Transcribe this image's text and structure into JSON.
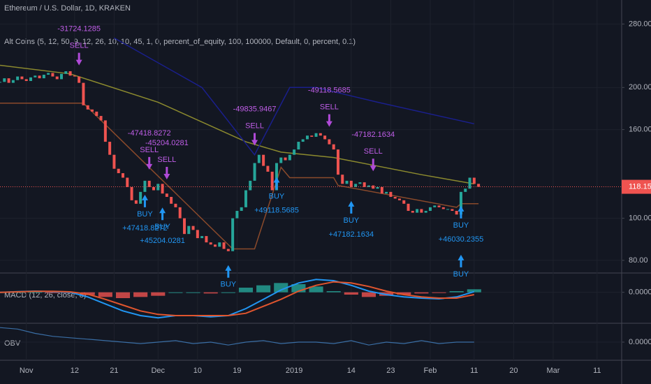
{
  "chart_data": {
    "type": "candlestick",
    "title": "Ethereum / U.S. Dollar, 1D, KRAKEN",
    "subtitle": "Alt Coins (5, 12, 50, 9, 12, 26, 10, 10, 45, 1, 0, percent_of_equity, 100, 100000, Default, 0, percent, 0.1)",
    "log_scale": true,
    "grid": true,
    "xlim": [
      -6,
      135.6
    ],
    "xticks": [
      {
        "value": 0,
        "label": "Nov"
      },
      {
        "value": 11,
        "label": "12"
      },
      {
        "value": 20,
        "label": "21"
      },
      {
        "value": 30,
        "label": "Dec"
      },
      {
        "value": 39,
        "label": "10"
      },
      {
        "value": 48,
        "label": "19"
      },
      {
        "value": 61,
        "label": "2019"
      },
      {
        "value": 74,
        "label": "14"
      },
      {
        "value": 83,
        "label": "23"
      },
      {
        "value": 92,
        "label": "Feb"
      },
      {
        "value": 102,
        "label": "11"
      },
      {
        "value": 111,
        "label": "20"
      },
      {
        "value": 120,
        "label": "Mar"
      },
      {
        "value": 130,
        "label": "11"
      }
    ],
    "ylim": [
      75.1,
      318
    ],
    "yticks": [
      {
        "value": 80,
        "label": "80.00"
      },
      {
        "value": 100,
        "label": "100.00"
      },
      {
        "value": 160,
        "label": "160.00"
      },
      {
        "value": 200,
        "label": "200.00"
      },
      {
        "value": 280,
        "label": "280.00"
      }
    ],
    "last_price": 118.15,
    "up_color": "#26a69a",
    "down_color": "#ef5350",
    "x": [
      -6,
      -5,
      -4,
      -3,
      -2,
      -1,
      0,
      1,
      2,
      3,
      4,
      5,
      6,
      7,
      8,
      9,
      10,
      11,
      12,
      13,
      14,
      15,
      16,
      17,
      18,
      19,
      20,
      21,
      22,
      23,
      24,
      25,
      26,
      27,
      28,
      29,
      30,
      31,
      32,
      33,
      34,
      35,
      36,
      37,
      38,
      39,
      40,
      41,
      42,
      43,
      44,
      45,
      46,
      47,
      48,
      49,
      50,
      51,
      52,
      53,
      54,
      55,
      56,
      57,
      58,
      59,
      60,
      61,
      62,
      63,
      64,
      65,
      66,
      67,
      68,
      69,
      70,
      71,
      72,
      73,
      74,
      75,
      76,
      77,
      78,
      79,
      80,
      81,
      82,
      83,
      84,
      85,
      86,
      87,
      88,
      89,
      90,
      91,
      92,
      93,
      94,
      95,
      96,
      97,
      98,
      99,
      100,
      101,
      102,
      103
    ],
    "close": [
      206,
      210,
      205,
      208,
      212,
      209,
      207,
      211,
      213,
      210,
      214,
      216,
      212,
      209,
      215,
      218,
      213,
      212,
      205,
      182,
      178,
      176,
      172,
      168,
      150,
      140,
      130,
      127,
      124,
      118,
      110,
      108,
      115,
      122,
      118,
      116,
      120,
      114,
      112,
      108,
      106,
      100,
      92,
      96,
      94,
      90,
      91,
      88,
      87,
      86,
      88,
      85,
      84,
      100,
      104,
      106,
      116,
      122,
      134,
      140,
      132,
      128,
      116,
      134,
      138,
      136,
      140,
      144,
      150,
      152,
      155,
      154,
      157,
      155,
      152,
      148,
      144,
      126,
      120,
      122,
      118,
      120,
      121,
      118,
      119,
      117,
      118,
      114,
      115,
      112,
      111,
      110,
      108,
      104,
      103,
      105,
      103,
      104,
      106,
      107,
      106,
      105,
      105,
      104,
      102,
      115,
      117,
      124,
      120,
      118.15
    ],
    "lines": [
      {
        "color": "#8c8a2e",
        "x": [
          -6,
          10,
          30,
          50,
          58,
          70,
          90,
          102
        ],
        "values": [
          225,
          215,
          185,
          150,
          142,
          138,
          126,
          120
        ]
      },
      {
        "color": "#1a1f8c",
        "x": [
          20,
          40,
          52,
          60,
          66,
          80,
          102
        ],
        "values": [
          260,
          200,
          140,
          200,
          200,
          185,
          165
        ]
      },
      {
        "color": "#8b4a2b",
        "x": [
          -6,
          13,
          47,
          52,
          58,
          60,
          70,
          71,
          98,
          99,
          103
        ],
        "values": [
          184,
          184,
          85,
          85,
          131,
          124,
          124,
          119,
          106,
          108,
          108
        ]
      }
    ],
    "signals": [
      {
        "side": "SELL",
        "x": 12,
        "label": "-31724.1285"
      },
      {
        "side": "SELL",
        "x": 28,
        "label": "-47418.8272"
      },
      {
        "side": "SELL",
        "x": 32,
        "label": "-45204.0281"
      },
      {
        "side": "SELL",
        "x": 52,
        "label": "-49835.9467"
      },
      {
        "side": "SELL",
        "x": 69,
        "label": "-49118.5685"
      },
      {
        "side": "SELL",
        "x": 79,
        "label": "-47182.1634"
      },
      {
        "side": "BUY",
        "x": 27,
        "label": "+47418.8272"
      },
      {
        "side": "BUY",
        "x": 31,
        "label": "+45204.0281"
      },
      {
        "side": "BUY",
        "x": 46
      },
      {
        "side": "BUY",
        "x": 57,
        "label": "+49118.5685"
      },
      {
        "side": "BUY",
        "x": 74,
        "label": "+47182.1634"
      },
      {
        "side": "BUY",
        "x": 99,
        "label": "+46030.2355"
      },
      {
        "side": "BUY",
        "x": 99
      }
    ],
    "macd": {
      "title": "MACD (12, 26, close, 8)",
      "ylim": [
        -13,
        8
      ],
      "yticks": [
        {
          "value": 0,
          "label": "0.0000"
        }
      ],
      "x": [
        -6,
        -2,
        2,
        6,
        10,
        14,
        18,
        22,
        26,
        30,
        34,
        38,
        42,
        46,
        50,
        54,
        58,
        62,
        66,
        70,
        74,
        78,
        82,
        86,
        90,
        94,
        98,
        102
      ],
      "macd_color": "#2196f3",
      "signal_color": "#e0552e",
      "macd": [
        0,
        0.3,
        0.5,
        0.3,
        0,
        -2,
        -5,
        -8,
        -10,
        -11,
        -10,
        -10,
        -10.5,
        -10,
        -7,
        -3,
        1,
        4,
        5.5,
        5,
        3,
        0.5,
        -1,
        -2,
        -2.5,
        -2.8,
        -2,
        0.3
      ],
      "signal": [
        0,
        0.2,
        0.4,
        0.4,
        0.2,
        -0.8,
        -3,
        -5.5,
        -8,
        -9.5,
        -10,
        -10,
        -10,
        -10,
        -9,
        -6,
        -3,
        0.5,
        3,
        4.5,
        4,
        2.5,
        0.5,
        -1,
        -2,
        -2.5,
        -2.5,
        -1
      ],
      "hist": [
        0,
        0.1,
        0.1,
        -0.1,
        -0.2,
        -1.2,
        -2,
        -2.5,
        -2,
        -1.5,
        0,
        0,
        -0.5,
        0,
        2,
        3,
        4,
        3.5,
        2.5,
        0.5,
        -1,
        -2,
        -1.5,
        -1,
        -0.5,
        -0.3,
        0.5,
        1.3
      ]
    },
    "obv": {
      "title": "OBV",
      "ylim": [
        -12,
        12
      ],
      "yticks": [
        {
          "value": 0,
          "label": "0.0000"
        }
      ],
      "color": "#3a6ea5",
      "x": [
        -6,
        -2,
        2,
        6,
        10,
        14,
        18,
        22,
        26,
        30,
        34,
        38,
        42,
        46,
        50,
        54,
        58,
        62,
        66,
        70,
        74,
        78,
        82,
        86,
        90,
        94,
        98,
        102
      ],
      "values": [
        10,
        9,
        6,
        4,
        3,
        2,
        1,
        0,
        -1,
        0,
        1,
        -1,
        0,
        -2,
        0,
        1,
        -1,
        0,
        0,
        -1,
        1,
        -2,
        0,
        -1,
        1,
        -1,
        0,
        0
      ]
    }
  }
}
